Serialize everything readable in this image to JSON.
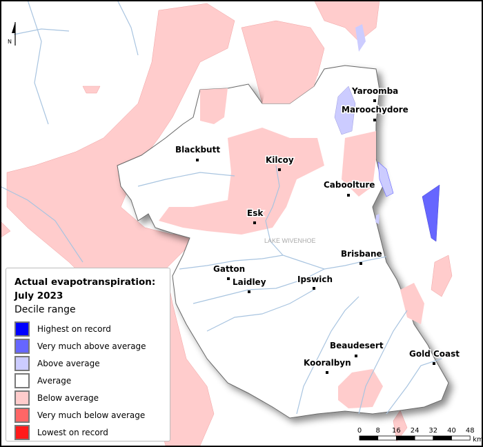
{
  "legend": {
    "title_line1": "Actual evapotranspiration:",
    "title_line2": "July 2023",
    "subtitle": "Decile range",
    "items": [
      {
        "label": "Highest on record",
        "color": "#0000ff"
      },
      {
        "label": "Very much above average",
        "color": "#6666ff"
      },
      {
        "label": "Above average",
        "color": "#ccccff"
      },
      {
        "label": "Average",
        "color": "#ffffff"
      },
      {
        "label": "Below average",
        "color": "#ffcccc"
      },
      {
        "label": "Very much below average",
        "color": "#ff6666"
      },
      {
        "label": "Lowest on record",
        "color": "#ff1a1a"
      }
    ]
  },
  "north_arrow": {
    "label": "N",
    "icon": "north-arrow-icon"
  },
  "scale_bar": {
    "ticks": [
      "0",
      "8",
      "16",
      "24",
      "32",
      "40",
      "48"
    ],
    "unit": "km"
  },
  "lake_label": "LAKE WIVENHOE",
  "towns": [
    {
      "name": "Yaroomba"
    },
    {
      "name": "Maroochydore"
    },
    {
      "name": "Blackbutt"
    },
    {
      "name": "Kilcoy"
    },
    {
      "name": "Caboolture"
    },
    {
      "name": "Esk"
    },
    {
      "name": "Brisbane"
    },
    {
      "name": "Gatton"
    },
    {
      "name": "Laidley"
    },
    {
      "name": "Ipswich"
    },
    {
      "name": "Beaudesert"
    },
    {
      "name": "Gold Coast"
    },
    {
      "name": "Kooralbyn"
    }
  ],
  "colors": {
    "river": "#a8c4e0",
    "region_outline": "#666666",
    "background": "#ffffff"
  }
}
